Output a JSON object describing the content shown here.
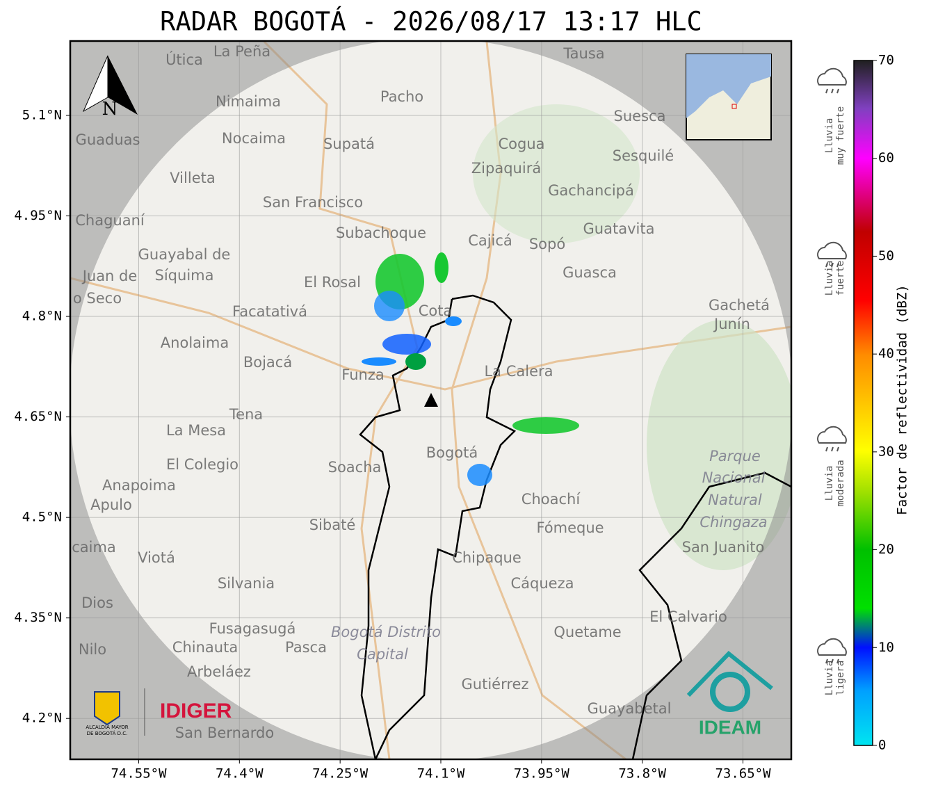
{
  "title": "RADAR BOGOTÁ - 2026/08/17 13:17 HLC",
  "map": {
    "xlim": [
      -74.652,
      -73.578
    ],
    "ylim": [
      4.139,
      5.211
    ],
    "xticks": [
      {
        "value": -74.55,
        "label": "74.55°W"
      },
      {
        "value": -74.4,
        "label": "74.4°W"
      },
      {
        "value": -74.25,
        "label": "74.25°W"
      },
      {
        "value": -74.1,
        "label": "74.1°W"
      },
      {
        "value": -73.95,
        "label": "73.95°W"
      },
      {
        "value": -73.8,
        "label": "73.8°W"
      },
      {
        "value": -73.65,
        "label": "73.65°W"
      }
    ],
    "yticks": [
      {
        "value": 5.1,
        "label": "5.1°N"
      },
      {
        "value": 4.95,
        "label": "4.95°N"
      },
      {
        "value": 4.8,
        "label": "4.8°N"
      },
      {
        "value": 4.65,
        "label": "4.65°N"
      },
      {
        "value": 4.5,
        "label": "4.5°N"
      },
      {
        "value": 4.35,
        "label": "4.35°N"
      },
      {
        "value": 4.2,
        "label": "4.2°N"
      }
    ],
    "grid": true,
    "north": "N",
    "places": [
      "La Peña",
      "Útica",
      "Tausa",
      "Pacho",
      "Nimaima",
      "Suesca",
      "Guaduas",
      "Nocaima",
      "Supatá",
      "Cogua",
      "Sesquilé",
      "Zipaquirá",
      "Villeta",
      "Gachancipá",
      "San Francisco",
      "Chaguaní",
      "Guatavita",
      "Subachoque",
      "Cajicá",
      "Sopó",
      "Guayabal de",
      "Síquima",
      "Juan de",
      "o Seco",
      "Guasca",
      "El Rosal",
      "Gachetá",
      "Junín",
      "Facatativá",
      "Cota",
      "Anolaima",
      "Bojacá",
      "La Calera",
      "Funza",
      "Tena",
      "La Mesa",
      "Bogotá",
      "Parque",
      "Nacional",
      "Natural",
      "Chingaza",
      "El Colegio",
      "Soacha",
      "Anapoima",
      "Apulo",
      "Choachí",
      "Sibaté",
      "Fómeque",
      "San Juanito",
      "caima",
      "Viotá",
      "Chipaque",
      "Silvania",
      "Cáqueza",
      "Dios",
      "El Calvario",
      "Fusagasugá",
      "Bogotá Distrito",
      "Capital",
      "Quetame",
      "Nilo",
      "Chinauta",
      "Pasca",
      "Arbeláez",
      "Gutiérrez",
      "Guayabetal",
      "San Bernardo"
    ]
  },
  "colorbar": {
    "label": "Factor de reflectividad (dBZ)",
    "lim": [
      0,
      70
    ],
    "ticks": [
      0,
      10,
      20,
      30,
      40,
      50,
      60,
      70
    ]
  },
  "legend": [
    [
      "Lluvia",
      "muy fuerte"
    ],
    [
      "Lluvia",
      "fuerte"
    ],
    [
      "Lluvia",
      "moderada"
    ],
    [
      "Lluvia",
      "ligera"
    ]
  ],
  "logos": {
    "idiger": "IDIGER",
    "alcaldia": [
      "ALCALDÍA MAYOR",
      "DE BOGOTÁ D.C."
    ],
    "ideam": "IDEAM"
  }
}
